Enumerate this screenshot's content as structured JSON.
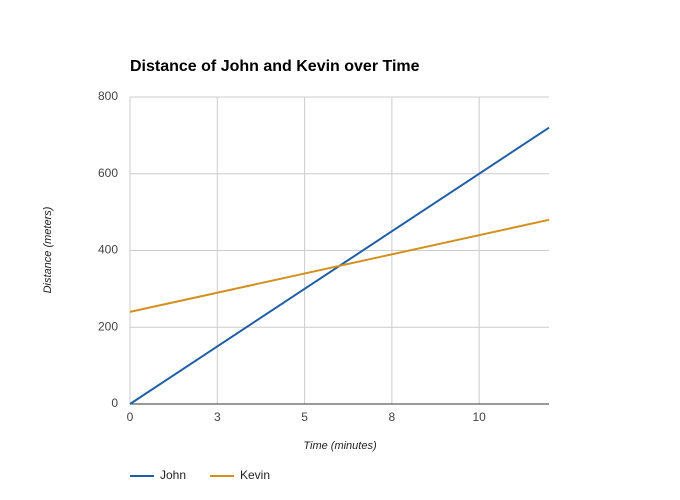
{
  "chart_data": {
    "type": "line",
    "title": "Distance of John and Kevin over Time",
    "x_label": "Time (minutes)",
    "y_label": "Distance (meters)",
    "x": [
      0,
      12
    ],
    "series": [
      {
        "name": "John",
        "color": "#1f5fa6",
        "values": [
          0,
          720
        ]
      },
      {
        "name": "Kevin",
        "color": "#d4901f",
        "values": [
          240,
          480
        ]
      }
    ],
    "xlim": [
      0,
      12
    ],
    "xticks": [
      0,
      {
        "value": 2.5,
        "label": "3"
      },
      5,
      {
        "value": 7.5,
        "label": "8"
      },
      10
    ],
    "ylim": [
      0,
      800
    ],
    "yticks": [
      0,
      200,
      400,
      600,
      800
    ],
    "grid": true,
    "legend": "bottom"
  }
}
